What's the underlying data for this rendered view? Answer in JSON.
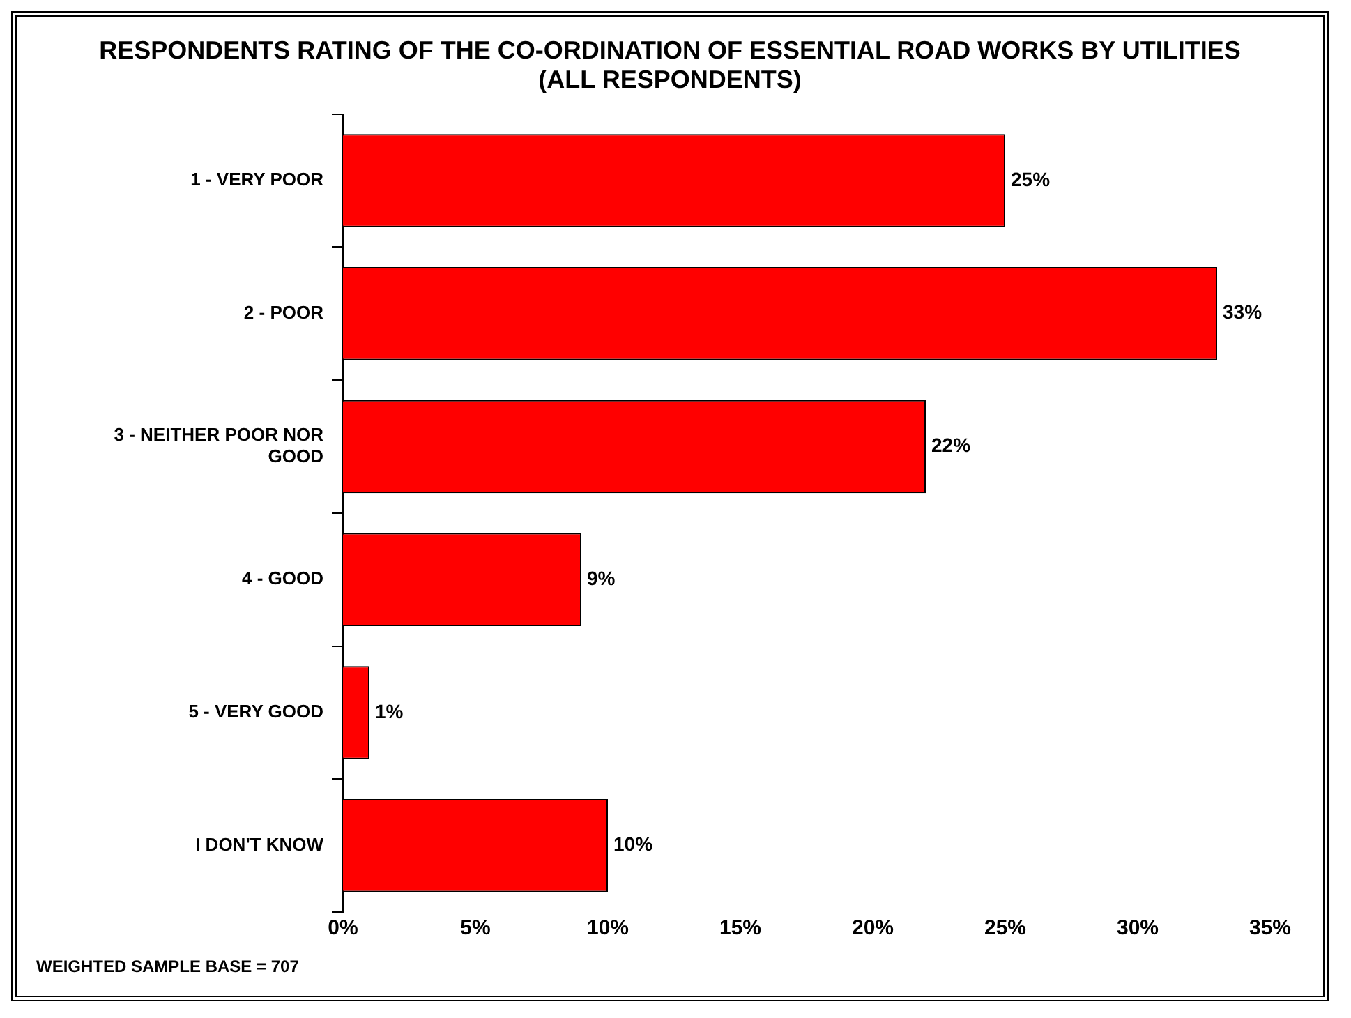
{
  "chart_data": {
    "type": "bar",
    "orientation": "horizontal",
    "title": "RESPONDENTS RATING OF THE CO-ORDINATION OF ESSENTIAL ROAD WORKS BY UTILITIES\n(ALL RESPONDENTS)",
    "categories": [
      "1 - VERY POOR",
      "2 - POOR",
      "3 - NEITHER POOR NOR GOOD",
      "4 - GOOD",
      "5 - VERY GOOD",
      "I DON'T KNOW"
    ],
    "values": [
      25,
      33,
      22,
      9,
      1,
      10
    ],
    "value_labels": [
      "25%",
      "33%",
      "22%",
      "9%",
      "1%",
      "10%"
    ],
    "color": "#ff0000",
    "xlim": [
      0,
      35
    ],
    "xticks": [
      {
        "value": 0,
        "label": "0%"
      },
      {
        "value": 5,
        "label": "5%"
      },
      {
        "value": 10,
        "label": "10%"
      },
      {
        "value": 15,
        "label": "15%"
      },
      {
        "value": 20,
        "label": "20%"
      },
      {
        "value": 25,
        "label": "25%"
      },
      {
        "value": 30,
        "label": "30%"
      },
      {
        "value": 35,
        "label": "35%"
      }
    ],
    "grid": false,
    "legend": false,
    "annotations": [
      "WEIGHTED SAMPLE BASE = 707"
    ]
  }
}
